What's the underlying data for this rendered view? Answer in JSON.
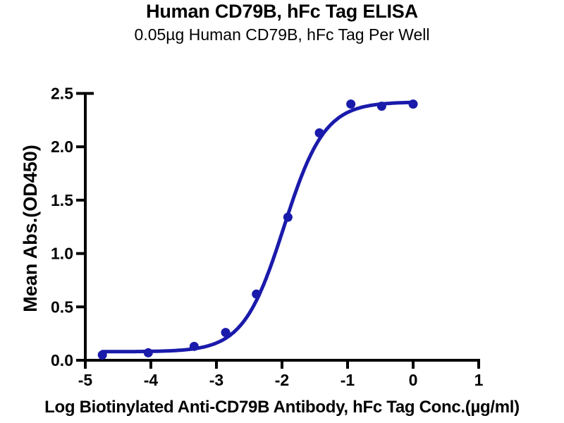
{
  "chart_data": {
    "type": "scatter",
    "title": "Human CD79B, hFc Tag ELISA",
    "subtitle": "0.05µg Human CD79B, hFc Tag Per Well",
    "xlabel": "Log Biotinylated Anti-CD79B Antibody, hFc Tag Conc.(µg/ml)",
    "ylabel": "Mean Abs.(OD450)",
    "xlim": [
      -5,
      1
    ],
    "ylim": [
      0,
      2.5
    ],
    "grid": false,
    "legend": "none",
    "x_ticks": [
      {
        "v": -5,
        "label": "-5"
      },
      {
        "v": -4,
        "label": "-4"
      },
      {
        "v": -3,
        "label": "-3"
      },
      {
        "v": -2,
        "label": "-2"
      },
      {
        "v": -1,
        "label": "-1"
      },
      {
        "v": 0,
        "label": "0"
      },
      {
        "v": 1,
        "label": "1"
      }
    ],
    "y_ticks": [
      {
        "v": 0.0,
        "label": "0.0"
      },
      {
        "v": 0.5,
        "label": "0.5"
      },
      {
        "v": 1.0,
        "label": "1.0"
      },
      {
        "v": 1.5,
        "label": "1.5"
      },
      {
        "v": 2.0,
        "label": "2.0"
      },
      {
        "v": 2.5,
        "label": "2.5"
      }
    ],
    "points": [
      {
        "x": -4.74,
        "y": 0.05
      },
      {
        "x": -4.04,
        "y": 0.07
      },
      {
        "x": -3.34,
        "y": 0.13
      },
      {
        "x": -2.86,
        "y": 0.26
      },
      {
        "x": -2.39,
        "y": 0.62
      },
      {
        "x": -1.91,
        "y": 1.34
      },
      {
        "x": -1.43,
        "y": 2.13
      },
      {
        "x": -0.95,
        "y": 2.4
      },
      {
        "x": -0.48,
        "y": 2.38
      },
      {
        "x": 0.0,
        "y": 2.4
      }
    ],
    "fit": {
      "model": "4PL",
      "bottom": 0.08,
      "top": 2.42,
      "logEC50": -1.97,
      "hillslope": 1.4,
      "curve_x_start": -4.74,
      "curve_x_end": 0.0
    },
    "colors": {
      "series_blue": "#1a1aab",
      "axis_black": "#000000",
      "background": "#ffffff"
    }
  }
}
